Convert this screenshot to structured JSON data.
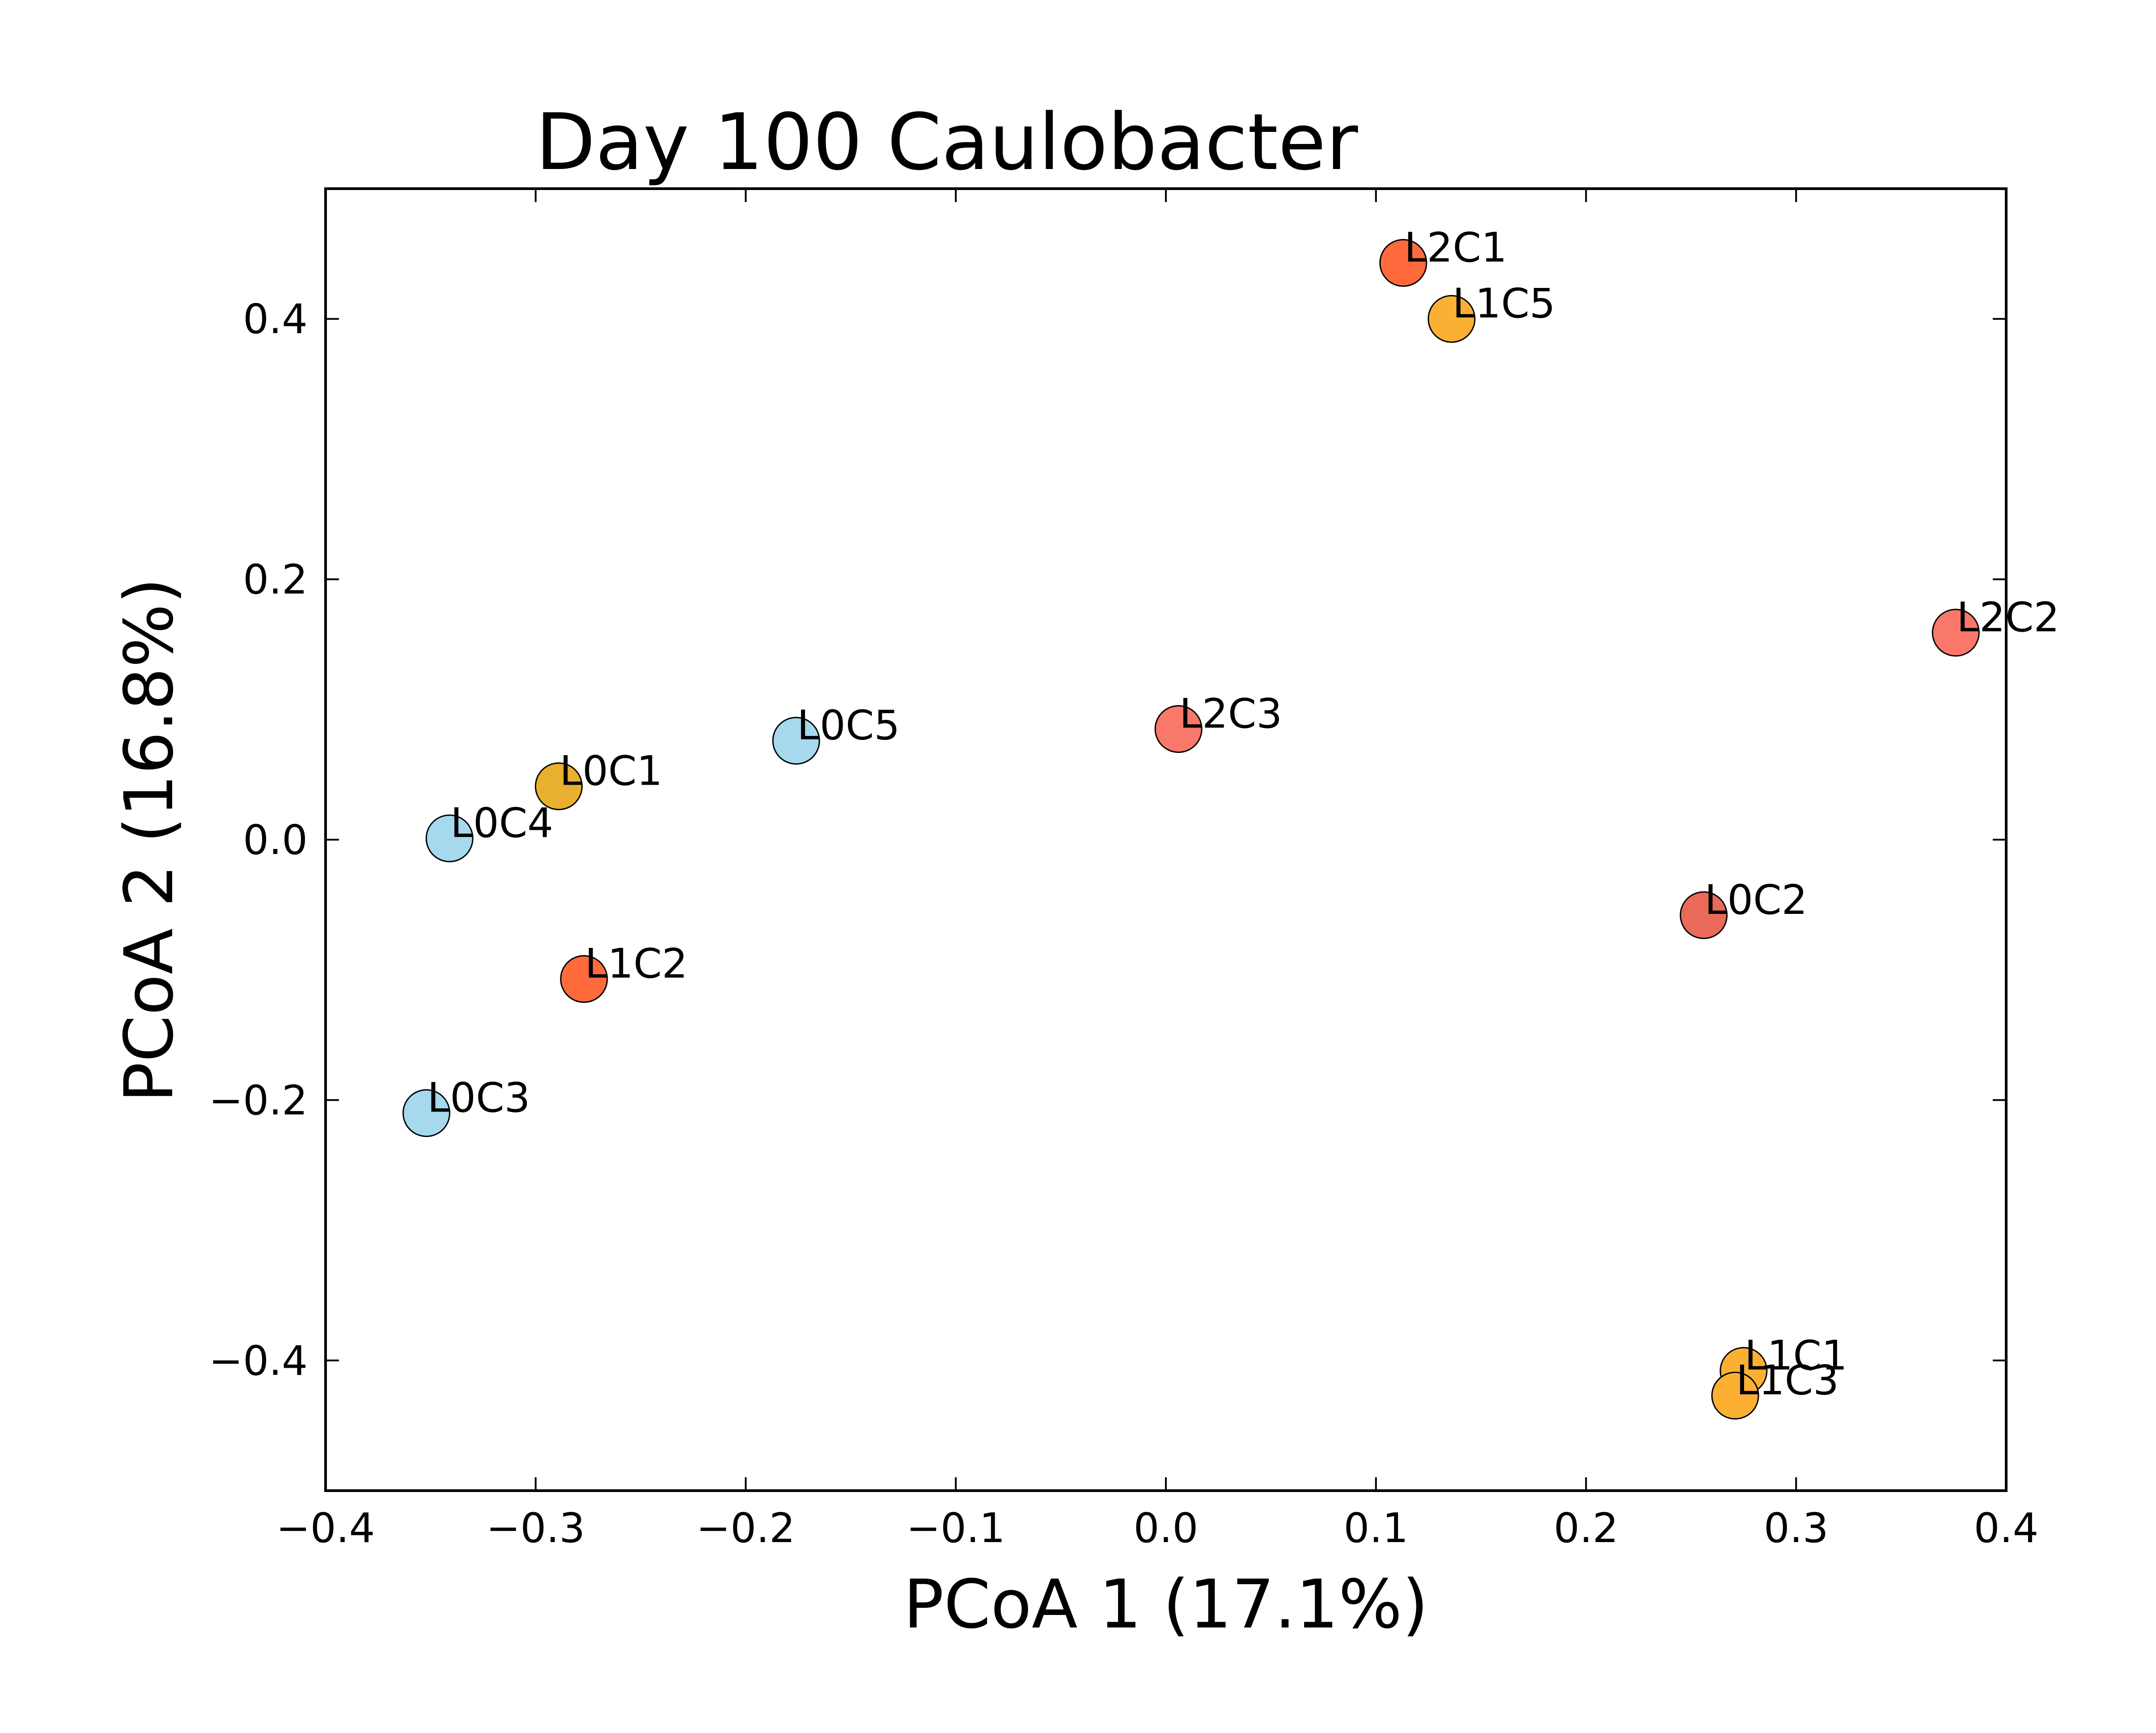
{
  "chart_data": {
    "type": "scatter",
    "title": "Day 100 Caulobacter",
    "xlabel": "PCoA 1 (17.1%)",
    "ylabel": "PCoA 2 (16.8%)",
    "xlim": [
      -0.4,
      0.4
    ],
    "ylim": [
      -0.5,
      0.5
    ],
    "xticks": [
      -0.4,
      -0.3,
      -0.2,
      -0.1,
      0.0,
      0.1,
      0.2,
      0.3,
      0.4
    ],
    "xtick_labels": [
      "−0.4",
      "−0.3",
      "−0.2",
      "−0.1",
      "0.0",
      "0.1",
      "0.2",
      "0.3",
      "0.4"
    ],
    "yticks": [
      -0.4,
      -0.2,
      0.0,
      0.2,
      0.4
    ],
    "ytick_labels": [
      "−0.4",
      "−0.2",
      "0.0",
      "0.2",
      "0.4"
    ],
    "grid": false,
    "legend": "none",
    "points": [
      {
        "label": "L2C1",
        "x": 0.113,
        "y": 0.443,
        "color": "#ff6a3d"
      },
      {
        "label": "L1C5",
        "x": 0.136,
        "y": 0.4,
        "color": "#fbb034"
      },
      {
        "label": "L2C2",
        "x": 0.376,
        "y": 0.159,
        "color": "#f9786a"
      },
      {
        "label": "L2C3",
        "x": 0.006,
        "y": 0.085,
        "color": "#f9786a"
      },
      {
        "label": "L0C5",
        "x": -0.176,
        "y": 0.076,
        "color": "#a6d8ee"
      },
      {
        "label": "L0C1",
        "x": -0.289,
        "y": 0.041,
        "color": "#e9b030"
      },
      {
        "label": "L0C4",
        "x": -0.341,
        "y": 0.001,
        "color": "#a6d8ee"
      },
      {
        "label": "L0C2",
        "x": 0.256,
        "y": -0.058,
        "color": "#ea6a5a"
      },
      {
        "label": "L1C2",
        "x": -0.277,
        "y": -0.107,
        "color": "#ff6a3d"
      },
      {
        "label": "L0C3",
        "x": -0.352,
        "y": -0.21,
        "color": "#a6d8ee"
      },
      {
        "label": "L1C1",
        "x": 0.275,
        "y": -0.408,
        "color": "#fbb034"
      },
      {
        "label": "L1C3",
        "x": 0.271,
        "y": -0.427,
        "color": "#fbb034"
      }
    ]
  }
}
